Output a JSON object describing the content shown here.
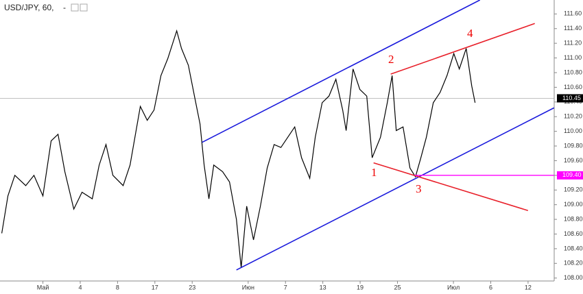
{
  "chart_data": {
    "type": "line",
    "title": "USD/JPY, 60,",
    "title_suffix": "-",
    "series": [
      {
        "name": "USD/JPY",
        "color": "#000000",
        "x": [
          -4.41,
          -3.75,
          -3.01,
          -1.84,
          -0.96,
          0,
          0.88,
          1.62,
          2.35,
          3.31,
          4.19,
          5.29,
          6.03,
          6.76,
          7.5,
          8.6,
          9.34,
          10.44,
          11.18,
          11.91,
          12.65,
          13.38,
          14.34,
          14.85,
          15.59,
          16.32,
          16.84,
          17.28,
          17.79,
          18.31,
          19.26,
          20,
          20.74,
          21.25,
          21.84,
          22.57,
          23.31,
          24.04,
          24.78,
          25.51,
          26.25,
          26.99,
          27.72,
          28.6,
          29.19,
          29.93,
          30.66,
          31.4,
          32.13,
          32.5,
          33.24,
          33.97,
          34.71,
          35.29,
          36.18,
          36.91,
          37.43,
          37.87,
          38.6,
          39.34,
          39.93,
          40.51,
          41.1,
          41.84,
          42.57,
          43.31,
          44.04,
          44.63,
          45.37,
          45.96,
          46.32
        ],
        "values": [
          108.61,
          109.12,
          109.4,
          109.26,
          109.4,
          109.12,
          109.87,
          109.96,
          109.45,
          108.94,
          109.17,
          109.08,
          109.54,
          109.82,
          109.4,
          109.26,
          109.54,
          110.34,
          110.15,
          110.29,
          110.76,
          110.99,
          111.37,
          111.13,
          110.9,
          110.43,
          110.1,
          109.54,
          109.08,
          109.54,
          109.45,
          109.31,
          108.8,
          108.14,
          108.98,
          108.52,
          108.98,
          109.5,
          109.82,
          109.78,
          109.92,
          110.06,
          109.64,
          109.36,
          109.92,
          110.39,
          110.48,
          110.71,
          110.29,
          110.01,
          110.85,
          110.57,
          110.48,
          109.64,
          109.92,
          110.39,
          110.76,
          110.01,
          110.06,
          109.5,
          109.38,
          109.64,
          109.92,
          110.39,
          110.53,
          110.76,
          111.06,
          110.85,
          111.13,
          110.62,
          110.39
        ]
      }
    ],
    "trend_lines": [
      {
        "color": "#1a1adc",
        "x": [
          17.06,
          46.84
        ],
        "y": [
          109.85,
          111.79
        ]
      },
      {
        "color": "#1a1adc",
        "x": [
          20.74,
          54.78
        ],
        "y": [
          108.11,
          110.32
        ]
      },
      {
        "color": "#e8202a",
        "x": [
          37.28,
          52.72
        ],
        "y": [
          110.78,
          111.47
        ]
      },
      {
        "color": "#e8202a",
        "x": [
          35.44,
          51.99
        ],
        "y": [
          109.57,
          108.92
        ]
      }
    ],
    "level": {
      "value": 109.4,
      "label": "109.40",
      "color": "#ff00ff",
      "x_start": 39.85
    },
    "last_price": {
      "value": 110.45,
      "color": "#000000"
    },
    "annotations": [
      "1",
      "2",
      "3",
      "4"
    ],
    "xlim": [
      -4.6,
      54.8
    ],
    "ylim": [
      107.96,
      111.79
    ],
    "xticks": [
      {
        "value": 0,
        "label": "Май"
      },
      4,
      8,
      {
        "value": 12,
        "label": "17"
      },
      {
        "value": 16,
        "label": "23"
      },
      {
        "value": 22,
        "label": "Июн"
      },
      {
        "value": 26,
        "label": "7"
      },
      {
        "value": 30,
        "label": "13"
      },
      {
        "value": 34,
        "label": "19"
      },
      {
        "value": 38,
        "label": "25"
      },
      {
        "value": 44,
        "label": "Июл"
      },
      {
        "value": 48,
        "label": "6"
      },
      {
        "value": 52,
        "label": "12"
      }
    ],
    "yticks": [
      {
        "value": 108,
        "label": "108.00"
      },
      {
        "value": 108.2,
        "label": "108.20"
      },
      {
        "value": 108.4,
        "label": "108.40"
      },
      {
        "value": 108.6,
        "label": "108.60"
      },
      {
        "value": 108.8,
        "label": "108.80"
      },
      {
        "value": 109,
        "label": "109.00"
      },
      {
        "value": 109.2,
        "label": "109.20"
      },
      {
        "value": 109.4,
        "label": "109.40"
      },
      {
        "value": 109.6,
        "label": "109.60"
      },
      {
        "value": 109.8,
        "label": "109.80"
      },
      {
        "value": 110,
        "label": "110.00"
      },
      {
        "value": 110.2,
        "label": "110.20"
      },
      {
        "value": 110.4,
        "label": "110.40"
      },
      {
        "value": 110.6,
        "label": "110.60"
      },
      {
        "value": 110.8,
        "label": "110.80"
      },
      {
        "value": 111,
        "label": "111.00"
      },
      {
        "value": 111.2,
        "label": "111.20"
      },
      {
        "value": 111.4,
        "label": "111.40"
      },
      {
        "value": 111.6,
        "label": "111.60"
      }
    ]
  }
}
